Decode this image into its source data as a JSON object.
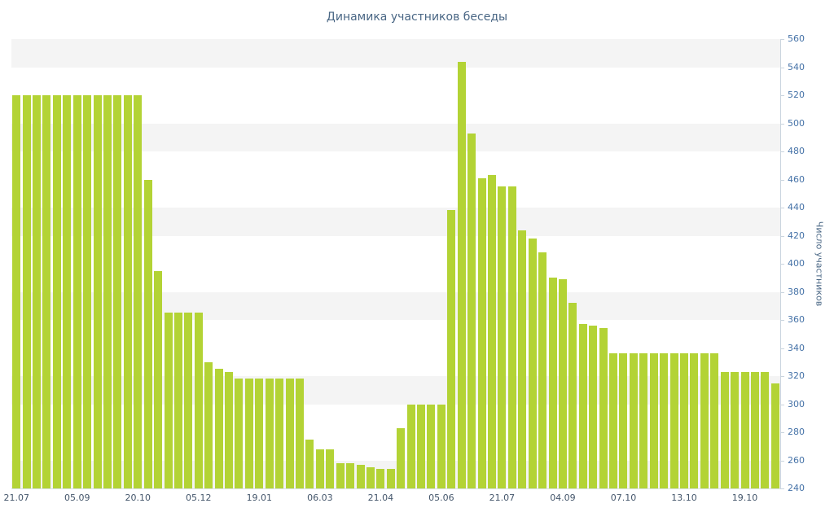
{
  "chart": {
    "colors": {
      "bar": "#b3d335",
      "band": "#f4f4f4",
      "axis_line": "#c9d4de",
      "y_label": "#4572a7",
      "x_label": "#44566b",
      "title": "#4a6785",
      "background": "#ffffff"
    }
  },
  "chart_data": {
    "type": "bar",
    "title": "Динамика участников беседы",
    "ylabel": "Число участников",
    "xlabel": "",
    "ylim": [
      240,
      560
    ],
    "y_tick_interval": 20,
    "y_axis_side": "right",
    "legend": "none",
    "grid": "alternating-bands",
    "bands": [
      [
        240,
        260
      ],
      [
        300,
        320
      ],
      [
        360,
        380
      ],
      [
        420,
        440
      ],
      [
        480,
        500
      ],
      [
        540,
        560
      ]
    ],
    "y_tick_labels": [
      "240",
      "260",
      "280",
      "300",
      "320",
      "340",
      "360",
      "380",
      "400",
      "420",
      "440",
      "460",
      "480",
      "500",
      "520",
      "540",
      "560"
    ],
    "x_tick_positions": [
      0,
      6,
      12,
      18,
      24,
      30,
      36,
      42,
      48,
      54,
      60,
      66,
      72
    ],
    "x_tick_labels": [
      "21.07",
      "05.09",
      "20.10",
      "05.12",
      "19.01",
      "06.03",
      "21.04",
      "05.06",
      "21.07",
      "04.09",
      "07.10",
      "13.10",
      "19.10"
    ],
    "values": [
      520,
      520,
      520,
      520,
      520,
      520,
      520,
      520,
      520,
      520,
      520,
      520,
      520,
      460,
      395,
      365,
      365,
      365,
      365,
      330,
      325,
      323,
      318,
      318,
      318,
      318,
      318,
      318,
      318,
      275,
      268,
      268,
      258,
      258,
      257,
      255,
      254,
      254,
      283,
      300,
      300,
      300,
      300,
      438,
      544,
      493,
      461,
      463,
      455,
      455,
      424,
      418,
      408,
      390,
      389,
      372,
      357,
      356,
      354,
      336,
      336,
      336,
      336,
      336,
      336,
      336,
      336,
      336,
      336,
      336,
      323,
      323,
      323,
      323,
      323,
      315
    ]
  }
}
